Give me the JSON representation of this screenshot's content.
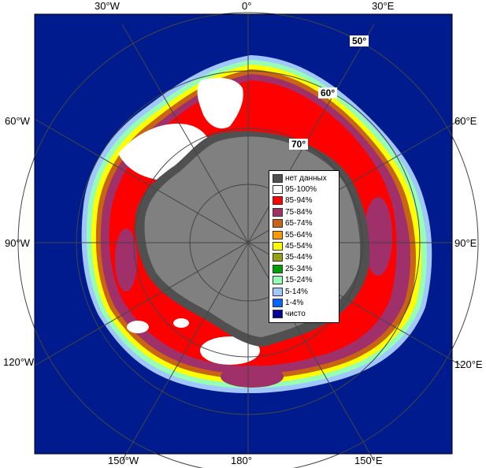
{
  "map": {
    "lon_labels_top": [
      "30°W",
      "0°",
      "30°E"
    ],
    "lon_labels_left": [
      "60°W",
      "90°W",
      "120°W"
    ],
    "lon_labels_right": [
      "60°E",
      "90°E",
      "120°E"
    ],
    "lon_labels_bottom": [
      "150°W",
      "180°",
      "150°E"
    ],
    "lat_labels": [
      "50°",
      "60°",
      "70°"
    ],
    "colors": {
      "ocean": "#001b8e",
      "land": "#808080",
      "no_data": "#505050",
      "ice_95_100": "#ffffff",
      "ice_85_94": "#ff0000",
      "ice_75_84": "#a0306a",
      "ice_65_74": "#c86414",
      "ice_55_64": "#ff9600",
      "ice_45_54": "#ffff00",
      "ice_35_44": "#96a014",
      "ice_25_34": "#00a000",
      "ice_15_24": "#96ffb4",
      "ice_5_14": "#a0c8ff",
      "ice_1_4": "#0064ff",
      "clear": "#000096"
    }
  },
  "legend": [
    {
      "label": "нет данных",
      "color": "#505050"
    },
    {
      "label": "95-100%",
      "color": "#ffffff"
    },
    {
      "label": "85-94%",
      "color": "#ff0000"
    },
    {
      "label": "75-84%",
      "color": "#a0306a"
    },
    {
      "label": "65-74%",
      "color": "#c86414"
    },
    {
      "label": "55-64%",
      "color": "#ff9600"
    },
    {
      "label": "45-54%",
      "color": "#ffff00"
    },
    {
      "label": "35-44%",
      "color": "#96a014"
    },
    {
      "label": "25-34%",
      "color": "#00a000"
    },
    {
      "label": "15-24%",
      "color": "#96ffb4"
    },
    {
      "label": "5-14%",
      "color": "#a0c8ff"
    },
    {
      "label": "1-4%",
      "color": "#0064ff"
    },
    {
      "label": "чисто",
      "color": "#000096"
    }
  ]
}
